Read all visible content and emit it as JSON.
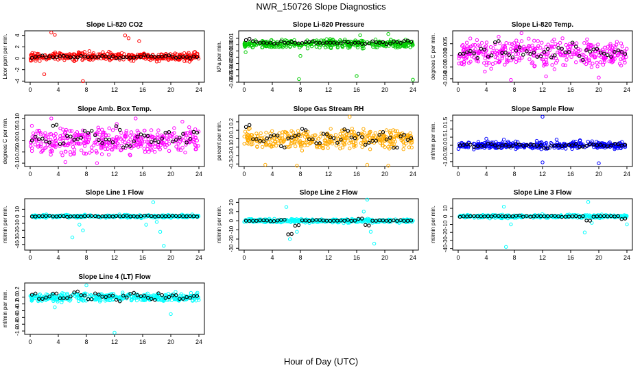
{
  "figure": {
    "title": "NWR_150726  Slope Diagnostics",
    "xlabel": "Hour of Day (UTC)"
  },
  "colors": {
    "background": "#ffffff",
    "axis": "#000000",
    "hourly": "#000000"
  },
  "chart_data": [
    {
      "type": "scatter",
      "title": "Slope Li-820 CO2",
      "ylabel": "Licor ppm per min.",
      "xlim": [
        0,
        24
      ],
      "ylim": [
        -4.2,
        4.8
      ],
      "yticks": [
        "-4",
        "-2",
        "0",
        "2",
        "4"
      ],
      "ytick_values": [
        -4,
        -2,
        0,
        2,
        4
      ],
      "xticks": [
        "0",
        "4",
        "8",
        "12",
        "16",
        "20",
        "24"
      ],
      "color": "#ff0000",
      "center": 0.3,
      "spread": 0.55,
      "outliers": [
        [
          3.0,
          4.5
        ],
        [
          3.5,
          4.1
        ],
        [
          7.5,
          -4.0
        ],
        [
          13.5,
          4.0
        ],
        [
          14.0,
          3.5
        ],
        [
          15.5,
          3.0
        ],
        [
          2.0,
          -2.8
        ]
      ],
      "hourly": [
        0.2,
        0.3,
        0.3,
        0.2,
        0.4,
        0.3,
        0.2,
        0.3,
        0.1,
        0.2,
        0.3,
        0.3,
        0.2,
        0.3,
        0.2,
        0.3,
        0.4,
        0.3,
        0.2,
        0.3,
        0.2,
        0.3,
        0.2,
        0.3
      ]
    },
    {
      "type": "scatter",
      "title": "Slope Li-820 Pressure",
      "ylabel": "kPa per min.",
      "xlim": [
        0,
        24
      ],
      "ylim": [
        -0.06,
        0.022
      ],
      "yticks": [
        "-0.06",
        "-0.05",
        "-0.04",
        "-0.03",
        "-0.02",
        "-0.01",
        "0.00",
        "0.01"
      ],
      "ytick_values": [
        -0.06,
        -0.05,
        -0.04,
        -0.03,
        -0.02,
        -0.01,
        0.0,
        0.01
      ],
      "xticks": [
        "0",
        "4",
        "8",
        "12",
        "16",
        "20",
        "24"
      ],
      "color": "#00cc00",
      "center": 0.001,
      "spread": 0.005,
      "outliers": [
        [
          7.8,
          -0.055
        ],
        [
          16.0,
          -0.05
        ],
        [
          24.0,
          -0.056
        ],
        [
          0.2,
          -0.012
        ],
        [
          8.0,
          -0.018
        ],
        [
          16.5,
          0.015
        ],
        [
          20.5,
          0.017
        ]
      ],
      "hourly": [
        0.008,
        0.004,
        0.004,
        0.003,
        0.003,
        0.004,
        0.003,
        0.002,
        0.003,
        0.004,
        0.003,
        0.003,
        0.004,
        0.003,
        0.004,
        0.003,
        0.003,
        0.002,
        0.004,
        0.003,
        0.002,
        0.004,
        0.004,
        0.005
      ]
    },
    {
      "type": "scatter",
      "title": "Slope Li-820 Temp.",
      "ylabel": "degrees C per min.",
      "xlim": [
        0,
        24
      ],
      "ylim": [
        -0.0115,
        0.0105
      ],
      "yticks": [
        "-0.010",
        "-0.005",
        "0.000",
        "0.005"
      ],
      "ytick_values": [
        -0.01,
        -0.005,
        0.0,
        0.005
      ],
      "xticks": [
        "0",
        "4",
        "8",
        "12",
        "16",
        "20",
        "24"
      ],
      "color": "#ff00ff",
      "center": 0.001,
      "spread": 0.0045,
      "outliers": [
        [
          7.5,
          -0.0105
        ],
        [
          9.0,
          0.0095
        ],
        [
          12.5,
          -0.009
        ],
        [
          20.0,
          -0.0095
        ]
      ],
      "hourly": [
        0.001,
        0.002,
        0.0,
        0.003,
        0.0,
        0.005,
        0.001,
        -0.001,
        0.002,
        0.0,
        0.001,
        -0.001,
        0.002,
        0.0,
        0.003,
        0.001,
        0.004,
        -0.001,
        0.002,
        0.003,
        0.001,
        0.0,
        0.002,
        0.001
      ]
    },
    {
      "type": "scatter",
      "title": "Slope Amb. Box Temp.",
      "ylabel": "degrees C per min.",
      "xlim": [
        0,
        24
      ],
      "ylim": [
        -0.115,
        0.115
      ],
      "yticks": [
        "-0.10",
        "-0.05",
        "0.00",
        "0.05",
        "0.10"
      ],
      "ytick_values": [
        -0.1,
        -0.05,
        0.0,
        0.05,
        0.1
      ],
      "xticks": [
        "0",
        "4",
        "8",
        "12",
        "16",
        "20",
        "24"
      ],
      "color": "#ff00ff",
      "center": 0.0,
      "spread": 0.045,
      "outliers": [
        [
          3.0,
          0.1
        ],
        [
          5.0,
          -0.095
        ],
        [
          9.5,
          -0.1
        ],
        [
          15.0,
          0.1
        ]
      ],
      "hourly": [
        0.005,
        0.01,
        0.0,
        0.07,
        -0.01,
        0.015,
        0.0,
        0.02,
        0.04,
        0.015,
        -0.01,
        0.0,
        0.05,
        -0.02,
        0.0,
        0.02,
        0.03,
        0.0,
        0.01,
        0.045,
        0.0,
        0.02,
        0.0,
        0.04
      ]
    },
    {
      "type": "scatter",
      "title": "Slope Gas Stream RH",
      "ylabel": "percent per min.",
      "xlim": [
        0,
        24
      ],
      "ylim": [
        -0.33,
        0.28
      ],
      "yticks": [
        "-0.3",
        "-0.2",
        "-0.1",
        "0.0",
        "0.1",
        "0.2"
      ],
      "ytick_values": [
        -0.3,
        -0.2,
        -0.1,
        0.0,
        0.1,
        0.2
      ],
      "xticks": [
        "0",
        "4",
        "8",
        "12",
        "16",
        "20",
        "24"
      ],
      "color": "#ffaa00",
      "center": 0.0,
      "spread": 0.09,
      "outliers": [
        [
          3.0,
          -0.31
        ],
        [
          7.5,
          -0.32
        ],
        [
          17.5,
          -0.31
        ],
        [
          20.5,
          -0.32
        ],
        [
          15.0,
          0.26
        ]
      ],
      "hourly": [
        0.15,
        0.0,
        -0.05,
        0.0,
        0.05,
        -0.1,
        0.0,
        0.05,
        0.1,
        0.0,
        -0.05,
        0.05,
        0.0,
        -0.05,
        0.1,
        0.0,
        0.05,
        -0.05,
        0.0,
        0.05,
        0.0,
        -0.1,
        0.05,
        0.0
      ]
    },
    {
      "type": "scatter",
      "title": "Slope Sample Flow",
      "ylabel": "ml/min per min.",
      "xlim": [
        0,
        24
      ],
      "ylim": [
        -1.3,
        1.85
      ],
      "yticks": [
        "-1.0",
        "-0.5",
        "0.0",
        "0.5",
        "1.0",
        "1.5"
      ],
      "ytick_values": [
        -1.0,
        -0.5,
        0.0,
        0.5,
        1.0,
        1.5
      ],
      "xticks": [
        "0",
        "4",
        "8",
        "12",
        "16",
        "20",
        "24"
      ],
      "color": "#0000ff",
      "center": 0.0,
      "spread": 0.17,
      "outliers": [
        [
          4.0,
          0.4
        ],
        [
          6.5,
          0.35
        ],
        [
          12.0,
          1.75
        ],
        [
          20.0,
          -1.1
        ],
        [
          12.0,
          -1.05
        ],
        [
          14.0,
          0.35
        ]
      ],
      "hourly": [
        0.0,
        0.05,
        -0.1,
        0.0,
        0.1,
        -0.05,
        0.0,
        -0.1,
        0.05,
        0.0,
        0.05,
        0.0,
        -0.15,
        0.0,
        -0.05,
        0.05,
        0.0,
        -0.1,
        0.0,
        0.05,
        0.0,
        -0.05,
        0.05,
        0.0
      ]
    },
    {
      "type": "scatter",
      "title": "Slope Line 1 Flow",
      "ylabel": "ml/min per min.",
      "xlim": [
        0,
        24
      ],
      "ylim": [
        -48,
        25
      ],
      "yticks": [
        "-40",
        "-30",
        "-20",
        "-10",
        "0",
        "10"
      ],
      "ytick_values": [
        -40,
        -30,
        -20,
        -10,
        0,
        10
      ],
      "xticks": [
        "0",
        "4",
        "8",
        "12",
        "16",
        "20",
        "24"
      ],
      "color": "#00ffff",
      "center": 0.0,
      "spread": 1.5,
      "outliers": [
        [
          6.0,
          -30
        ],
        [
          7.5,
          -20
        ],
        [
          7.0,
          -12
        ],
        [
          17.5,
          20
        ],
        [
          18.5,
          -22
        ],
        [
          19.0,
          -42
        ],
        [
          16.5,
          -12
        ],
        [
          18.0,
          -8
        ]
      ],
      "hourly": [
        0.0,
        0.0,
        0.5,
        0.0,
        0.0,
        -0.5,
        0.0,
        0.0,
        0.5,
        0.0,
        0.0,
        0.0,
        0.0,
        0.5,
        0.0,
        0.0,
        1.0,
        0.0,
        0.0,
        0.0,
        0.5,
        0.0,
        0.0,
        0.0
      ]
    },
    {
      "type": "scatter",
      "title": "Slope Line 2 Flow",
      "ylabel": "ml/min per min.",
      "xlim": [
        0,
        24
      ],
      "ylim": [
        -32,
        24
      ],
      "yticks": [
        "-30",
        "-20",
        "-10",
        "0",
        "10",
        "20"
      ],
      "ytick_values": [
        -30,
        -20,
        -10,
        0,
        10,
        20
      ],
      "xticks": [
        "0",
        "4",
        "8",
        "12",
        "16",
        "20",
        "24"
      ],
      "color": "#00ffff",
      "center": 0.0,
      "spread": 1.5,
      "outliers": [
        [
          6.0,
          15
        ],
        [
          6.5,
          -20
        ],
        [
          7.5,
          -12
        ],
        [
          17.5,
          23
        ],
        [
          18.0,
          -12
        ],
        [
          18.5,
          -25
        ],
        [
          17.0,
          10
        ]
      ],
      "hourly": [
        0.0,
        0.0,
        0.5,
        0.0,
        0.0,
        1.0,
        -15.0,
        -5.0,
        0.0,
        0.0,
        0.5,
        0.0,
        0.0,
        0.0,
        0.5,
        0.0,
        2.0,
        -5.0,
        0.0,
        0.5,
        0.0,
        0.0,
        0.5,
        0.0
      ]
    },
    {
      "type": "scatter",
      "title": "Slope Line 3 Flow",
      "ylabel": "ml/min per min.",
      "xlim": [
        0,
        24
      ],
      "ylim": [
        -42,
        22
      ],
      "yticks": [
        "-40",
        "-30",
        "-20",
        "-10",
        "0",
        "10"
      ],
      "ytick_values": [
        -40,
        -30,
        -20,
        -10,
        0,
        10
      ],
      "xticks": [
        "0",
        "4",
        "8",
        "12",
        "16",
        "20",
        "24"
      ],
      "color": "#00ffff",
      "center": 0.0,
      "spread": 1.5,
      "outliers": [
        [
          6.5,
          12
        ],
        [
          6.8,
          -38
        ],
        [
          7.5,
          -10
        ],
        [
          18.5,
          18
        ],
        [
          18.0,
          -20
        ],
        [
          19.0,
          -8
        ],
        [
          24.0,
          -10
        ]
      ],
      "hourly": [
        0.0,
        0.0,
        0.5,
        0.0,
        0.0,
        0.5,
        0.0,
        0.0,
        0.5,
        0.0,
        0.0,
        0.0,
        0.0,
        0.5,
        0.0,
        0.0,
        0.0,
        0.0,
        -5.0,
        0.0,
        0.5,
        0.0,
        0.0,
        -3.0
      ]
    },
    {
      "type": "scatter",
      "title": "Slope Line 4 (LT) Flow",
      "ylabel": "ml/min per min.",
      "xlim": [
        0,
        24
      ],
      "ylim": [
        -1.1,
        0.42
      ],
      "yticks": [
        "-1.0",
        "-0.8",
        "-0.6",
        "-0.4",
        "-0.2",
        "0.0",
        "0.2"
      ],
      "ytick_values": [
        -1.0,
        -0.8,
        -0.6,
        -0.4,
        -0.2,
        0.0,
        0.2
      ],
      "xticks": [
        "0",
        "4",
        "8",
        "12",
        "16",
        "20",
        "24"
      ],
      "color": "#00ffff",
      "center": 0.0,
      "spread": 0.09,
      "outliers": [
        [
          12.0,
          -1.05
        ],
        [
          20.0,
          -0.5
        ],
        [
          3.5,
          -0.3
        ],
        [
          8.0,
          0.35
        ]
      ],
      "hourly": [
        0.1,
        -0.05,
        0.0,
        0.1,
        -0.05,
        0.0,
        0.15,
        0.05,
        -0.05,
        0.1,
        0.0,
        0.05,
        -0.1,
        0.0,
        0.1,
        0.05,
        0.0,
        -0.05,
        0.1,
        0.0,
        0.05,
        -0.05,
        0.0,
        0.05
      ]
    }
  ]
}
